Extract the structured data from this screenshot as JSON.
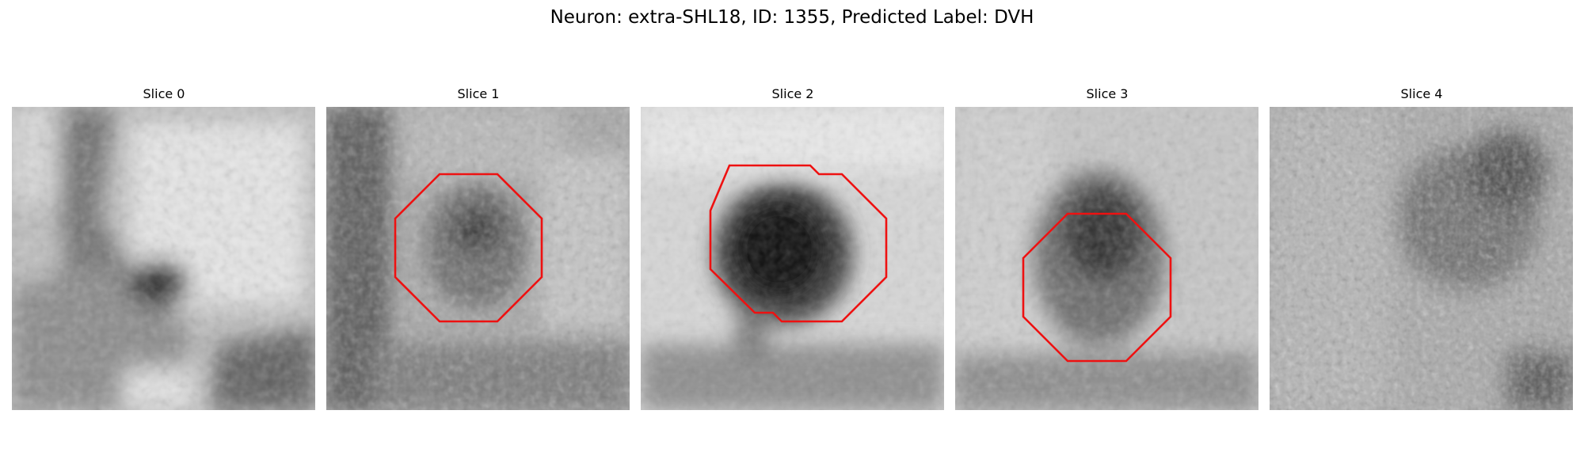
{
  "figure": {
    "title": "Neuron: extra-SHL18, ID: 1355, Predicted Label: DVH"
  },
  "colors": {
    "outline": "#ee1111",
    "background": "#ffffff"
  },
  "panels": [
    {
      "title": "Slice 0",
      "has_outline": false
    },
    {
      "title": "Slice 1",
      "has_outline": true
    },
    {
      "title": "Slice 2",
      "has_outline": true
    },
    {
      "title": "Slice 3",
      "has_outline": true
    },
    {
      "title": "Slice 4",
      "has_outline": false
    }
  ]
}
